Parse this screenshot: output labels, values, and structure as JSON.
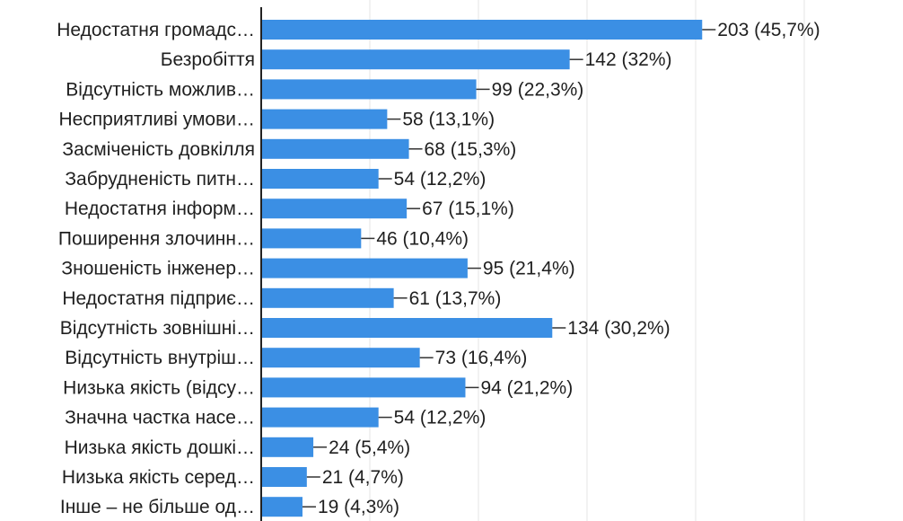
{
  "chart_data": {
    "type": "bar",
    "orientation": "horizontal",
    "categories": [
      "Недостатня громадс…",
      "Безробіття",
      "Відсутність можлив…",
      "Несприятливі умови…",
      "Засміченість довкілля",
      "Забрудненість питн…",
      "Недостатня інформ…",
      "Поширення злочинн…",
      "Зношеність інженер…",
      "Недостатня підприє…",
      "Відсутність зовнішні…",
      "Відсутність внутріш…",
      "Низька якість (відсу…",
      "Значна частка насе…",
      "Низька якість дошкі…",
      "Низька якість серед…",
      "Інше – не більше од…"
    ],
    "values": [
      203,
      142,
      99,
      58,
      68,
      54,
      67,
      46,
      95,
      61,
      134,
      73,
      94,
      54,
      24,
      21,
      19
    ],
    "value_labels": [
      "203 (45,7%)",
      "142 (32%)",
      "99 (22,3%)",
      "58 (13,1%)",
      "68 (15,3%)",
      "54 (12,2%)",
      "67 (15,1%)",
      "46 (10,4%)",
      "95 (21,4%)",
      "61 (13,7%)",
      "134 (30,2%)",
      "73 (16,4%)",
      "94 (21,2%)",
      "54 (12,2%)",
      "24 (5,4%)",
      "21 (4,7%)",
      "19 (4,3%)"
    ],
    "xlim": [
      0,
      300
    ],
    "grid": true,
    "bar_color": "#3b8fe4",
    "title": "",
    "xlabel": "",
    "ylabel": ""
  }
}
